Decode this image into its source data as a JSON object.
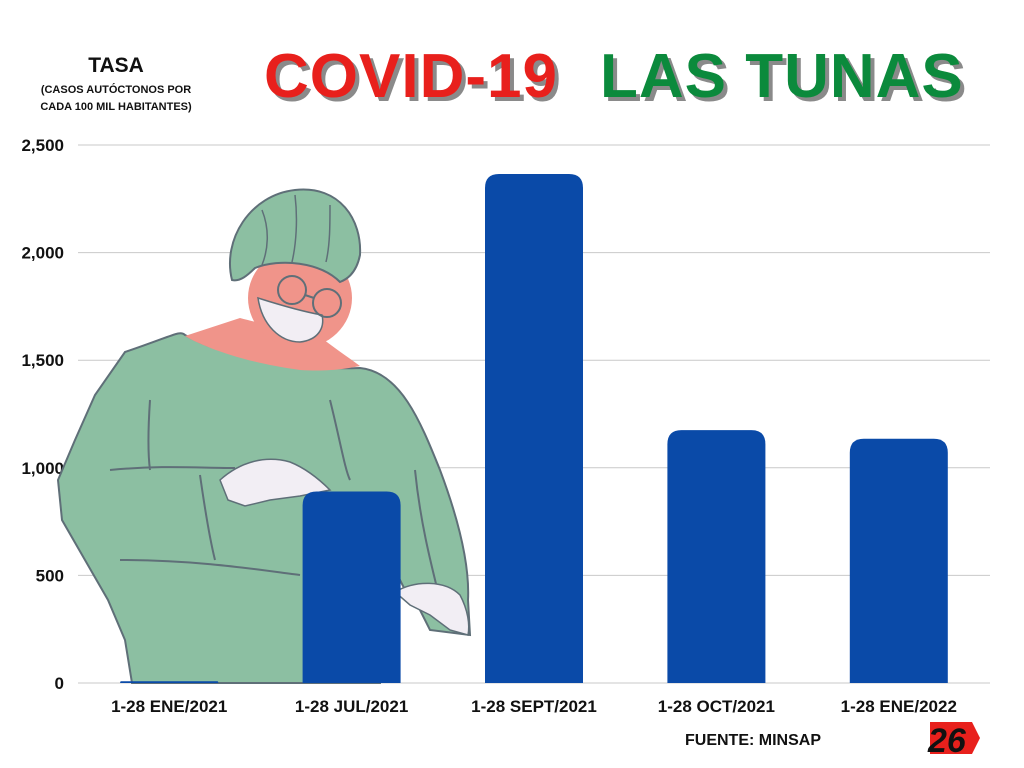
{
  "title": {
    "part1": "COVID-19",
    "part2": "LAS TUNAS",
    "color1": "#e8201c",
    "color2": "#0b8a3c"
  },
  "ylabel": {
    "main": "TASA",
    "sub_line1": "(CASOS AUTÓCTONOS POR",
    "sub_line2": "CADA 100 MIL HABITANTES)"
  },
  "source": "FUENTE: MINSAP",
  "logo": {
    "text": "26",
    "icon": "radio-26-logo-icon"
  },
  "illustration": {
    "icon": "health-worker-illustration-icon"
  },
  "chart_data": {
    "type": "bar",
    "categories": [
      "1-28 ENE/2021",
      "1-28 JUL/2021",
      "1-28 SEPT/2021",
      "1-28 OCT/2021",
      "1-28 ENE/2022"
    ],
    "series": [
      {
        "values": [
          8,
          890,
          2365,
          1175,
          1135
        ]
      }
    ],
    "bar_color": "#0a4aa8",
    "ylim": [
      0,
      2500
    ],
    "yticks": [
      0,
      500,
      1000,
      1500,
      2000,
      2500
    ],
    "ytick_labels": [
      "0",
      "500",
      "1,000",
      "1,500",
      "2,000",
      "2,500"
    ],
    "grid": true,
    "xlabel": "",
    "ylabel": "TASA"
  }
}
